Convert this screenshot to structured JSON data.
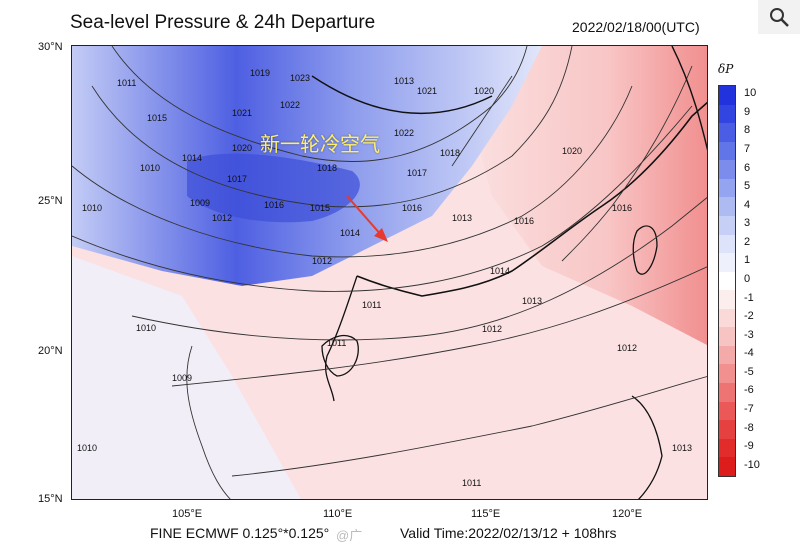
{
  "header": {
    "title": "Sea-level Pressure & 24h Departure",
    "datetime": "2022/02/18/00(UTC)",
    "zoom_icon": "magnifier-icon"
  },
  "map": {
    "annotation": "新一轮冷空气",
    "lat_labels": [
      "30°N",
      "25°N",
      "20°N",
      "15°N"
    ],
    "lon_labels": [
      "105°E",
      "110°E",
      "115°E",
      "120°E"
    ],
    "isobar_labels": [
      "1011",
      "1015",
      "1014",
      "1019",
      "1023",
      "1022",
      "1021",
      "1020",
      "1018",
      "1017",
      "1016",
      "1012",
      "1013",
      "1010",
      "1009",
      "1022",
      "1021",
      "1020",
      "1018",
      "1017",
      "1016",
      "1015",
      "1014",
      "1013",
      "1012",
      "1016",
      "1012",
      "1011",
      "1010",
      "1009",
      "1010",
      "1013",
      "1011",
      "1012",
      "1016",
      "1014",
      "1020",
      "1010",
      "1011",
      "1013"
    ],
    "arrow_color": "#e8392e",
    "annotation_color": "#fff06a"
  },
  "colorbar": {
    "title": "δP",
    "labels": [
      "10",
      "9",
      "8",
      "7",
      "6",
      "5",
      "4",
      "3",
      "2",
      "1",
      "0",
      "-1",
      "-2",
      "-3",
      "-4",
      "-5",
      "-6",
      "-7",
      "-8",
      "-9",
      "-10"
    ],
    "colors": [
      "#2233dd",
      "#3345e0",
      "#4a5de4",
      "#6275e8",
      "#7b8cec",
      "#95a4f0",
      "#aebbf3",
      "#c6d0f6",
      "#dde3fa",
      "#eef1fc",
      "#ffffff",
      "#fdeeee",
      "#fbd9d9",
      "#f8c3c3",
      "#f5aaaa",
      "#f29090",
      "#ee7474",
      "#ea5858",
      "#e64141",
      "#e22c2c",
      "#dd1c1c"
    ]
  },
  "footer": {
    "model": "FINE ECMWF 0.125°*0.125°",
    "valid_time": "Valid Time:2022/02/13/12 + 108hrs",
    "watermark": "@广"
  }
}
